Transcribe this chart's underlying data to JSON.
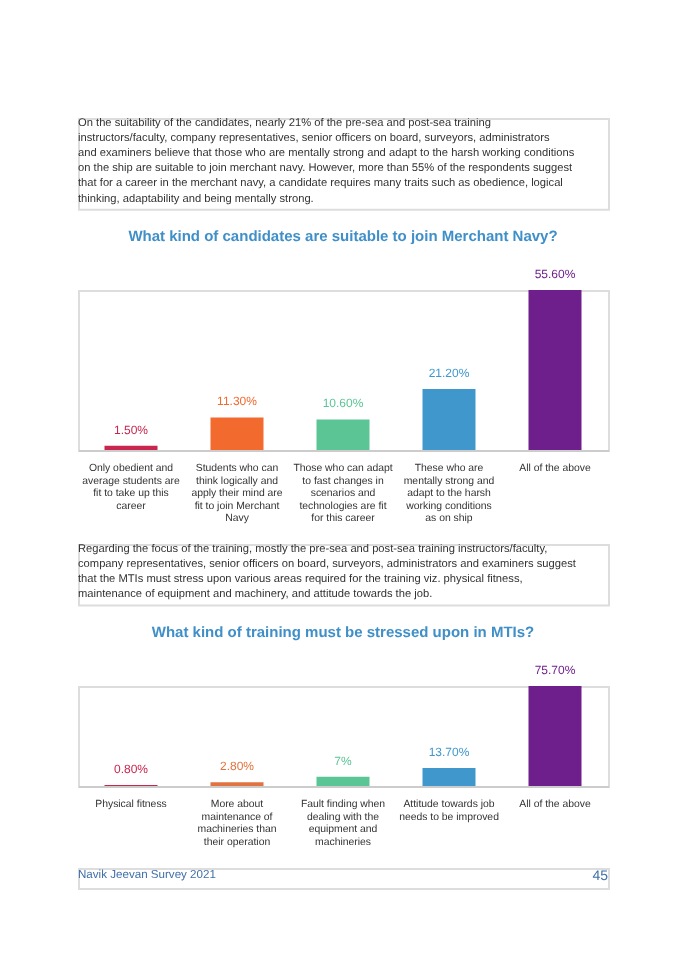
{
  "chart_data": [
    {
      "type": "bar",
      "title": "What kind of candidates are suitable to join Merchant Navy?",
      "annotations": [
        "On the suitability of the candidates, nearly 21% of the pre-sea and post-sea training instructors/faculty, company representatives, senior officers on board, surveyors, administrators and examiners believe that those who are mentally strong and adapt to the harsh working conditions on the ship are suitable to join merchant navy. However, more than 55% of the respondents suggest that for a career in the merchant navy, a candidate requires many traits such as obedience, logical thinking, adaptability and being mentally strong."
      ],
      "categories": [
        "Only obedient and average students are fit to take up this career",
        "Students who can think logically and apply their mind are fit to join Merchant Navy",
        "Those who can adapt to fast changes in scenarios and technologies are fit for this career",
        "These who are mentally strong and adapt to the harsh working conditions as on ship",
        "All of the above"
      ],
      "values": [
        1.5,
        11.3,
        10.6,
        21.2,
        55.6
      ],
      "value_labels": [
        "1.50%",
        "11.30%",
        "10.60%",
        "21.20%",
        "55.60%"
      ],
      "colors": [
        "#c8264f",
        "#f26a2e",
        "#5cc596",
        "#3f97cc",
        "#6e1f8c"
      ]
    },
    {
      "type": "bar",
      "title": "What kind of training must be stressed upon in MTIs?",
      "annotations": [
        "Regarding the focus of the training, mostly the pre-sea and post-sea training instructors/faculty, company representatives, senior officers on board, surveyors, administrators and examiners suggest that the MTIs must stress upon various areas required for the training viz. physical fitness, maintenance of equipment and machinery, and attitude towards the job.",
        "Navik Jeevan Survey 2021",
        "45"
      ],
      "categories": [
        "Physical fitness",
        "More about maintenance of machineries than their operation",
        "Fault finding when dealing with the equipment and machineries",
        "Attitude towards job needs to be improved",
        "All of the above"
      ],
      "values": [
        0.8,
        2.8,
        7,
        13.7,
        75.7
      ],
      "value_labels": [
        "0.80%",
        "2.80%",
        "7%",
        "13.70%",
        "75.70%"
      ],
      "colors": [
        "#c8264f",
        "#e0733f",
        "#5cc596",
        "#3f97cc",
        "#6e1f8c"
      ]
    }
  ]
}
